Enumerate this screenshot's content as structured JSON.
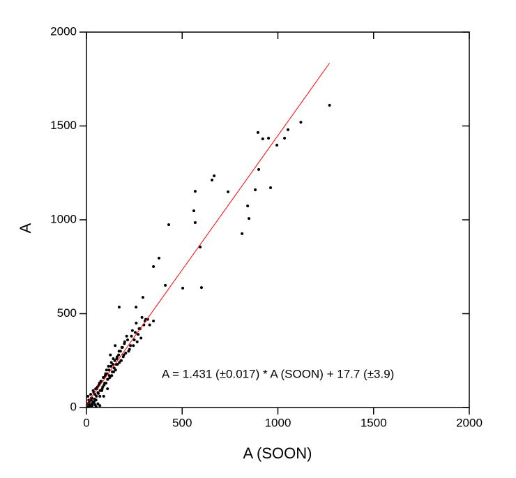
{
  "chart_data": {
    "type": "scatter",
    "xlabel": "A (SOON)",
    "ylabel": "A",
    "annotation": "A = 1.431 (±0.017) * A (SOON) + 17.7 (±3.9)",
    "xlim": [
      0,
      2000
    ],
    "ylim": [
      0,
      2000
    ],
    "xticks": [
      0,
      500,
      1000,
      1500,
      2000
    ],
    "yticks": [
      0,
      500,
      1000,
      1500,
      2000
    ],
    "color": "#000000",
    "fit_line": {
      "color": "#ff0000",
      "x": [
        0,
        1270
      ],
      "y": [
        17.7,
        1835
      ]
    },
    "x": [
      1270,
      1120,
      1053,
      1035,
      995,
      896,
      921,
      951,
      900,
      882,
      962,
      842,
      849,
      813,
      667,
      656,
      740,
      568,
      561,
      568,
      594,
      601,
      503,
      430,
      379,
      350,
      412,
      295,
      259,
      171,
      306,
      350,
      330,
      310,
      290,
      280,
      270,
      260,
      250,
      240,
      230,
      220,
      210,
      200,
      195,
      185,
      180,
      170,
      160,
      155,
      150,
      145,
      140,
      135,
      130,
      125,
      120,
      115,
      110,
      105,
      100,
      95,
      90,
      85,
      80,
      75,
      70,
      65,
      60,
      55,
      50,
      45,
      40,
      35,
      30,
      25,
      20,
      15,
      10,
      5,
      8,
      12,
      18,
      22,
      28,
      33,
      38,
      42,
      48,
      52,
      58,
      62,
      68,
      72,
      78,
      82,
      88,
      92,
      98,
      102,
      108,
      112,
      118,
      122,
      128,
      132,
      138,
      142,
      148,
      152,
      158,
      162,
      168,
      172,
      178,
      182,
      188,
      192,
      198,
      205,
      215,
      225,
      235,
      245,
      255,
      265,
      275,
      285,
      300,
      320,
      60,
      70,
      50,
      30,
      90,
      110,
      45,
      35,
      25
    ],
    "y": [
      1610,
      1520,
      1480,
      1435,
      1398,
      1465,
      1431,
      1435,
      1268,
      1160,
      1171,
      1074,
      1007,
      926,
      1234,
      1212,
      1149,
      1152,
      1048,
      985,
      855,
      639,
      636,
      974,
      796,
      751,
      651,
      587,
      535,
      535,
      461,
      461,
      440,
      470,
      480,
      420,
      390,
      450,
      360,
      410,
      330,
      300,
      380,
      350,
      280,
      320,
      250,
      300,
      270,
      230,
      330,
      210,
      260,
      190,
      240,
      280,
      170,
      220,
      150,
      200,
      180,
      130,
      160,
      110,
      90,
      140,
      60,
      120,
      80,
      100,
      40,
      70,
      30,
      90,
      20,
      50,
      10,
      30,
      5,
      20,
      60,
      40,
      15,
      70,
      50,
      30,
      80,
      45,
      100,
      60,
      110,
      75,
      130,
      90,
      140,
      100,
      160,
      120,
      170,
      130,
      180,
      150,
      200,
      160,
      220,
      170,
      230,
      190,
      250,
      200,
      260,
      230,
      280,
      240,
      300,
      250,
      320,
      270,
      340,
      290,
      360,
      310,
      380,
      330,
      400,
      350,
      420,
      370,
      440,
      470,
      20,
      10,
      5,
      10,
      60,
      100,
      15,
      25,
      40
    ]
  }
}
